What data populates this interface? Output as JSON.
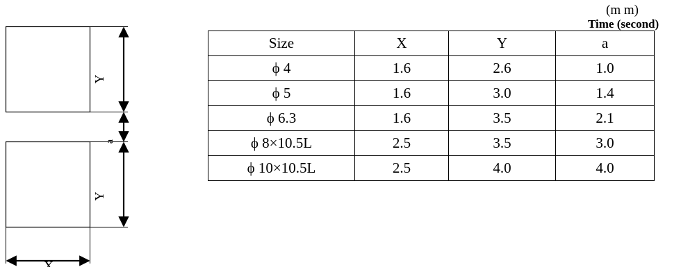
{
  "diagram": {
    "label_x": "X",
    "label_y_top": "Y",
    "label_y_bottom": "Y",
    "label_a": "a"
  },
  "unit_note": "(m m)",
  "time_note": "Time (second)",
  "table": {
    "headers": [
      "Size",
      "X",
      "Y",
      "a"
    ],
    "rows": [
      [
        "ϕ 4",
        "1.6",
        "2.6",
        "1.0"
      ],
      [
        "ϕ 5",
        "1.6",
        "3.0",
        "1.4"
      ],
      [
        "ϕ 6.3",
        "1.6",
        "3.5",
        "2.1"
      ],
      [
        "ϕ 8×10.5L",
        "2.5",
        "3.5",
        "3.0"
      ],
      [
        "ϕ 10×10.5L",
        "2.5",
        "4.0",
        "4.0"
      ]
    ]
  }
}
